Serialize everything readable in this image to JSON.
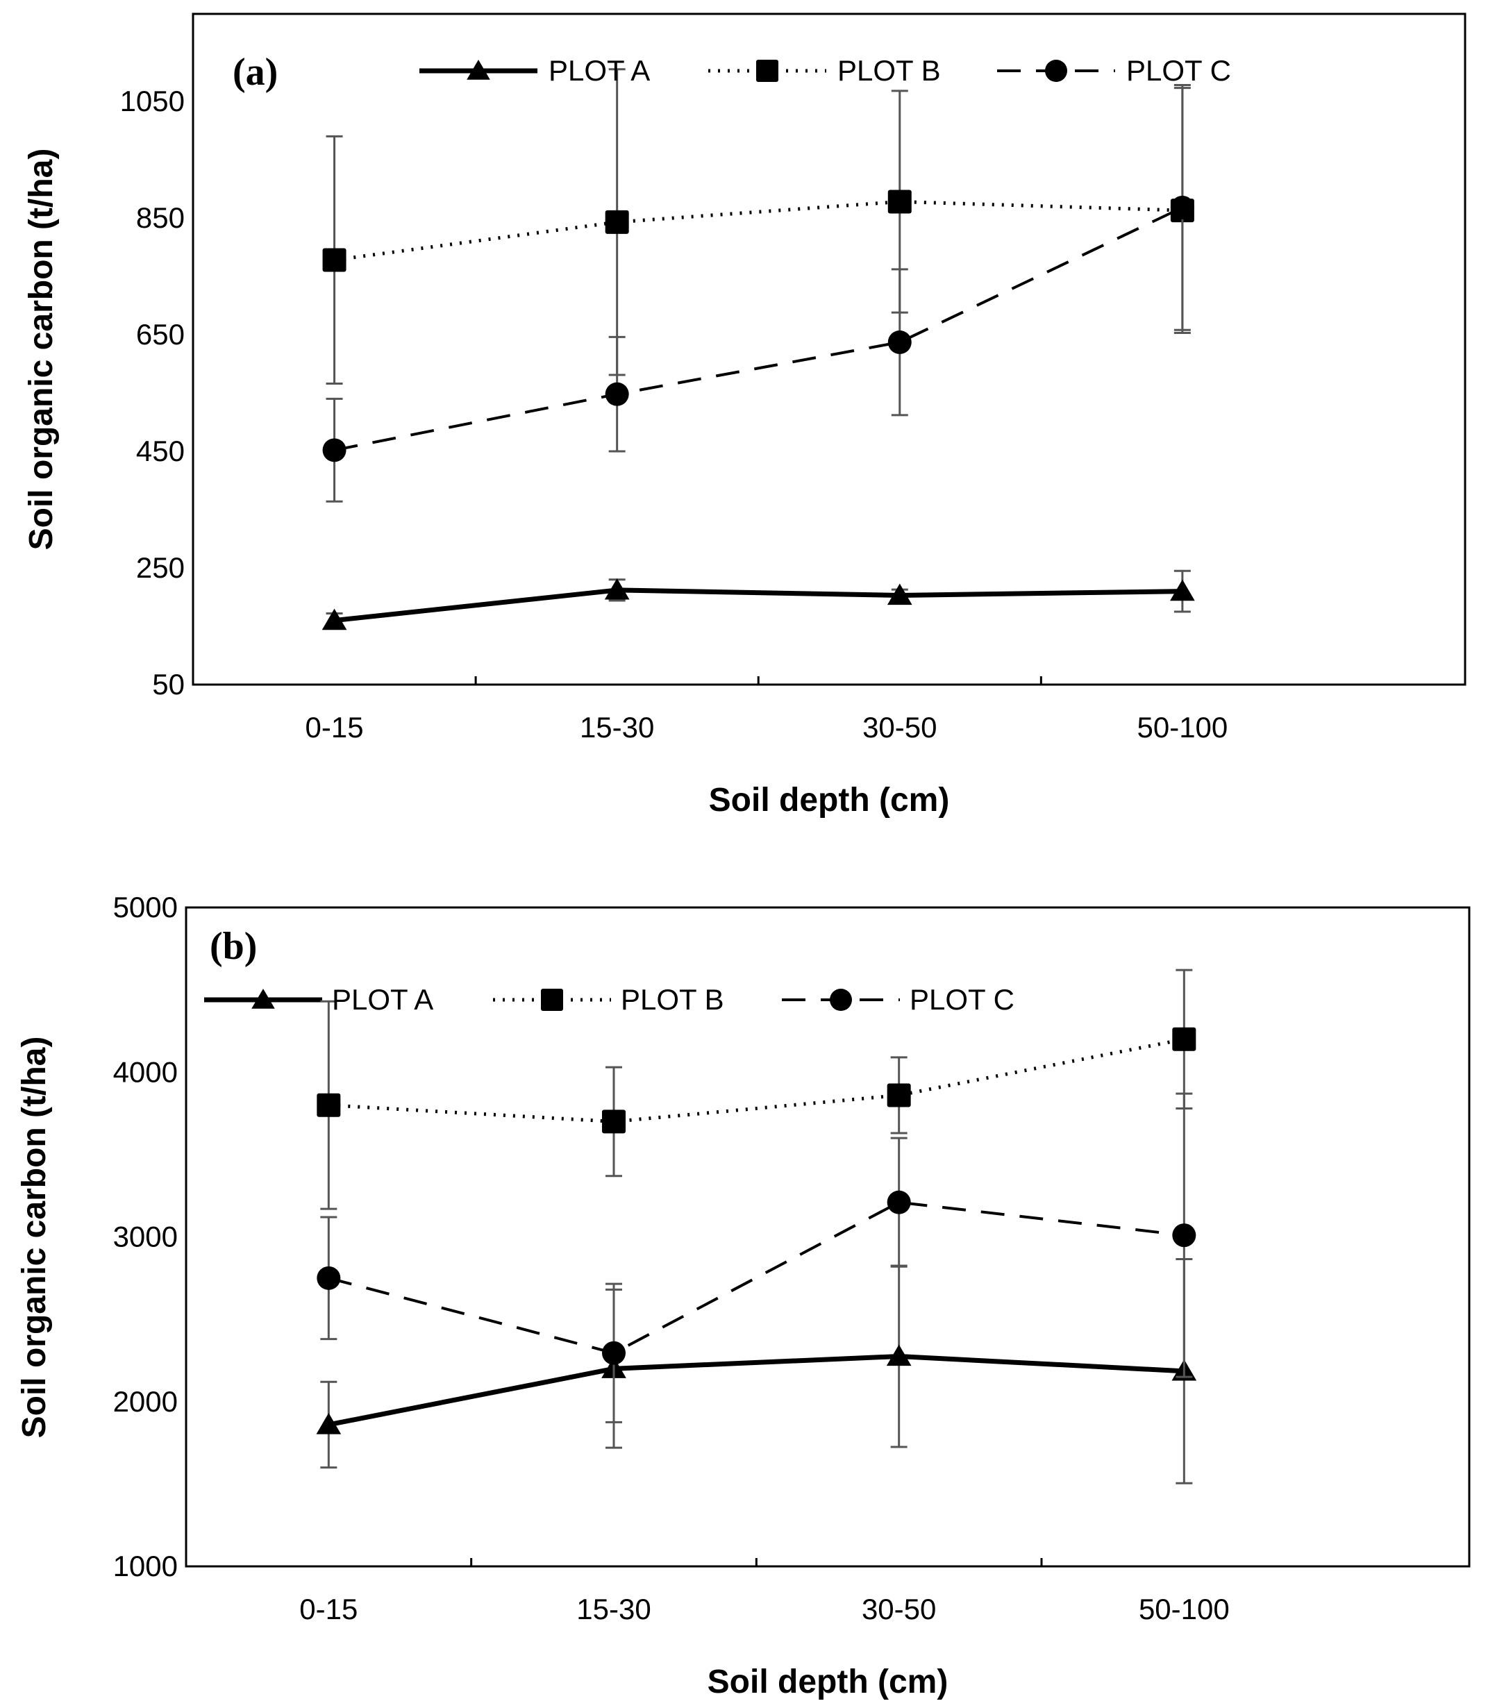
{
  "chart_data": [
    {
      "type": "line",
      "panel_label": "(a)",
      "categories": [
        "0-15",
        "15-30",
        "30-50",
        "50-100"
      ],
      "xlabel": "Soil depth (cm)",
      "ylabel": "Soil organic carbon (t/ha)",
      "ylim": [
        50,
        1200
      ],
      "yticks": [
        50,
        250,
        450,
        650,
        850,
        1050
      ],
      "ytick_labels": [
        "50",
        "250",
        "450",
        "650",
        "850",
        "1050"
      ],
      "legend_position": "top",
      "series": [
        {
          "name": "PLOT A",
          "marker": "triangle",
          "line_style": "solid",
          "values": [
            160,
            212,
            203,
            210
          ],
          "error": [
            12,
            18,
            10,
            35
          ]
        },
        {
          "name": "PLOT B",
          "marker": "square",
          "line_style": "dotted",
          "values": [
            778,
            843,
            878,
            863
          ],
          "error": [
            212,
            262,
            190,
            210
          ]
        },
        {
          "name": "PLOT C",
          "marker": "circle",
          "line_style": "dashed",
          "values": [
            452,
            548,
            637,
            868
          ],
          "error": [
            88,
            98,
            125,
            210
          ]
        }
      ]
    },
    {
      "type": "line",
      "panel_label": "(b)",
      "categories": [
        "0-15",
        "15-30",
        "30-50",
        "50-100"
      ],
      "xlabel": "Soil depth (cm)",
      "ylabel": "Soil organic carbon (t/ha)",
      "ylim": [
        1000,
        5000
      ],
      "yticks": [
        1000,
        2000,
        3000,
        4000,
        5000
      ],
      "ytick_labels": [
        "1000",
        "2000",
        "3000",
        "4000",
        "5000"
      ],
      "legend_position": "top-left",
      "series": [
        {
          "name": "PLOT A",
          "marker": "triangle",
          "line_style": "solid",
          "values": [
            1860,
            2200,
            2275,
            2185
          ],
          "error": [
            260,
            480,
            550,
            680
          ]
        },
        {
          "name": "PLOT B",
          "marker": "square",
          "line_style": "dotted",
          "values": [
            3800,
            3700,
            3860,
            4200
          ],
          "error": [
            630,
            330,
            230,
            420
          ]
        },
        {
          "name": "PLOT C",
          "marker": "circle",
          "line_style": "dashed",
          "values": [
            2750,
            2295,
            3210,
            3010
          ],
          "error": [
            370,
            420,
            390,
            860
          ]
        }
      ]
    }
  ]
}
